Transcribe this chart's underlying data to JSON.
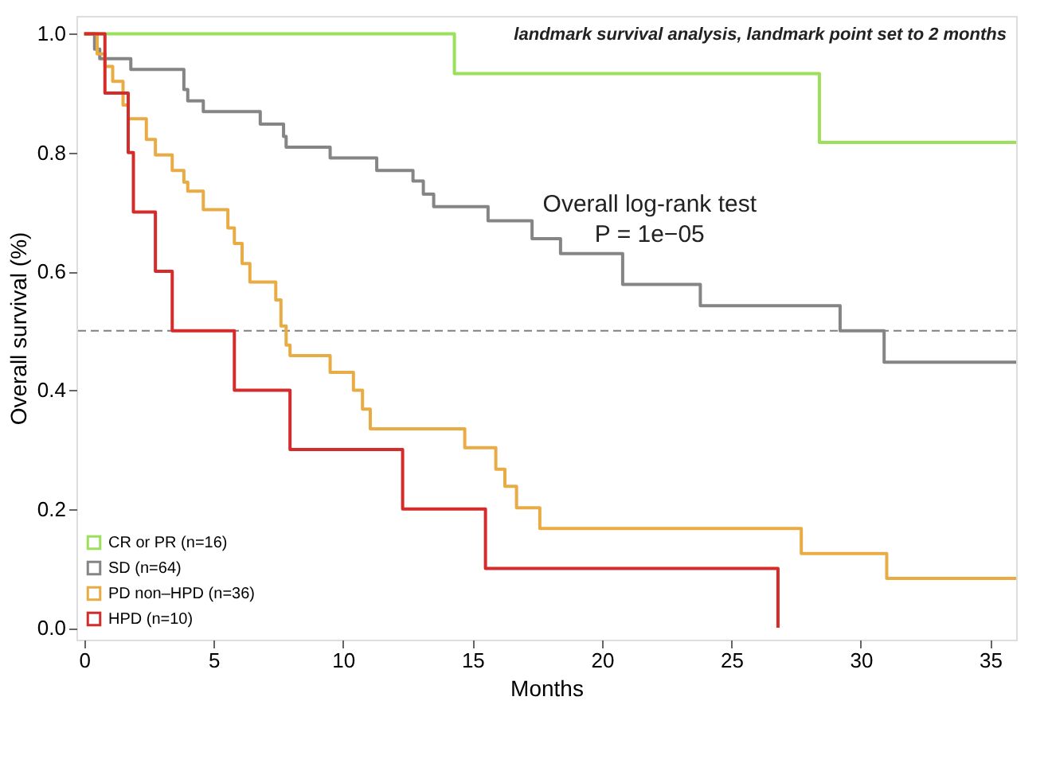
{
  "chart_data": {
    "type": "step",
    "xlabel": "Months",
    "ylabel": "Overall survival (%)",
    "xlim": [
      -0.3,
      36
    ],
    "ylim": [
      -0.02,
      1.03
    ],
    "xticks": [
      0,
      5,
      10,
      15,
      20,
      25,
      30,
      35
    ],
    "yticks": [
      {
        "value": 0,
        "label": "0.0"
      },
      {
        "value": 0.2,
        "label": "0.2"
      },
      {
        "value": 0.4,
        "label": "0.4"
      },
      {
        "value": 0.6,
        "label": "0.6"
      },
      {
        "value": 0.8,
        "label": "0.8"
      },
      {
        "value": 1,
        "label": "1.0"
      }
    ],
    "grid": false,
    "legend": "bottom left",
    "line_style": "solid",
    "ref_lines": [
      {
        "axis": "y",
        "value": 0.5,
        "label": null,
        "color": "#808080",
        "line_style": "dashed"
      }
    ],
    "annotations": [
      "landmark survival analysis, landmark point set to 2 months",
      "Overall log-rank test",
      "P = 1e−05"
    ],
    "series": [
      {
        "name": "CR or PR (n=16)",
        "color": "#9be05a",
        "x": [
          0,
          14.3,
          28.4,
          36
        ],
        "values": [
          1,
          0.933,
          0.817,
          0.817
        ]
      },
      {
        "name": "SD (n=64)",
        "color": "#858585",
        "x": [
          0,
          0.4,
          0.6,
          1.8,
          3.85,
          4.0,
          4.6,
          6.8,
          7.7,
          7.8,
          9.5,
          11.3,
          12.7,
          13.1,
          13.5,
          15.6,
          17.3,
          18.4,
          20.8,
          23.8,
          29.2,
          30.9,
          36
        ],
        "values": [
          1,
          0.974,
          0.958,
          0.94,
          0.906,
          0.887,
          0.869,
          0.848,
          0.827,
          0.809,
          0.791,
          0.77,
          0.752,
          0.73,
          0.709,
          0.685,
          0.655,
          0.63,
          0.578,
          0.542,
          0.5,
          0.447,
          0.447
        ]
      },
      {
        "name": "PD non–HPD (n=36)",
        "color": "#e9ac45",
        "x": [
          0,
          0.5,
          0.8,
          1.1,
          1.5,
          1.7,
          2.4,
          2.75,
          3.4,
          3.85,
          4.0,
          4.6,
          5.55,
          5.8,
          6.1,
          6.4,
          7.4,
          7.6,
          7.8,
          7.95,
          9.5,
          10.4,
          10.75,
          11.05,
          14.7,
          15.9,
          16.25,
          16.7,
          17.6,
          27.7,
          31.0,
          36
        ],
        "values": [
          1,
          0.966,
          0.945,
          0.92,
          0.88,
          0.857,
          0.822,
          0.796,
          0.77,
          0.75,
          0.735,
          0.704,
          0.673,
          0.647,
          0.613,
          0.582,
          0.552,
          0.508,
          0.476,
          0.458,
          0.43,
          0.4,
          0.368,
          0.335,
          0.303,
          0.267,
          0.238,
          0.202,
          0.167,
          0.125,
          0.083,
          0.083
        ]
      },
      {
        "name": "HPD (n=10)",
        "color": "#d42b2b",
        "x": [
          0,
          0.8,
          1.7,
          1.9,
          2.75,
          3.4,
          5.8,
          7.95,
          12.3,
          15.5,
          26.8
        ],
        "values": [
          1,
          0.9,
          0.8,
          0.7,
          0.6,
          0.5,
          0.4,
          0.3,
          0.2,
          0.1,
          0.0
        ]
      }
    ]
  }
}
